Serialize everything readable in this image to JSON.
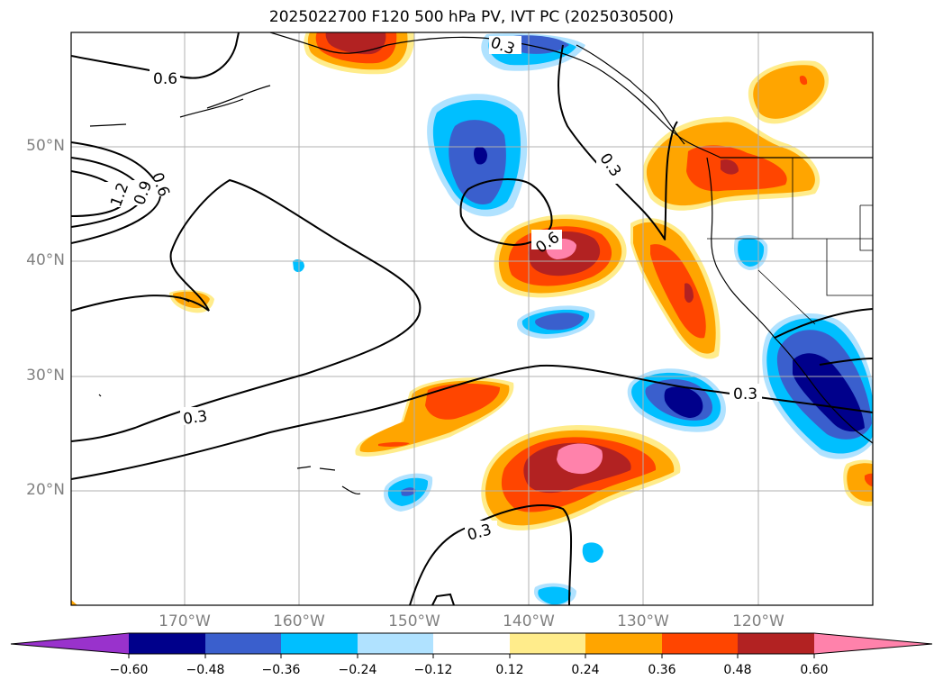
{
  "title": "2025022700 F120 500 hPa PV, IVT PC (2025030500)",
  "latitude_labels": [
    "50°N",
    "40°N",
    "30°N",
    "20°N"
  ],
  "longitude_labels": [
    "170°W",
    "160°W",
    "150°W",
    "140°W",
    "130°W",
    "120°W"
  ],
  "contour_labels": [
    "0.6",
    "0.3",
    "1.2",
    "0.9",
    "0.6",
    "0.3",
    "0.6",
    "0.3",
    "0.3",
    "0.3"
  ],
  "colorbar": {
    "tick_labels": [
      "−0.60",
      "−0.48",
      "−0.36",
      "−0.24",
      "−0.12",
      "0.12",
      "0.24",
      "0.36",
      "0.48",
      "0.60"
    ],
    "colors": [
      "#9932cc",
      "#00008b",
      "#3a5fcd",
      "#00bfff",
      "#b0e2ff",
      "#ffffff",
      "#ffec8b",
      "#ffa500",
      "#ff4500",
      "#b22222",
      "#ff82ab"
    ]
  },
  "colors": {
    "land": "#ffffff",
    "coastline": "#000000",
    "gridline": "#b0b0b0",
    "axis_label": "#808080"
  }
}
